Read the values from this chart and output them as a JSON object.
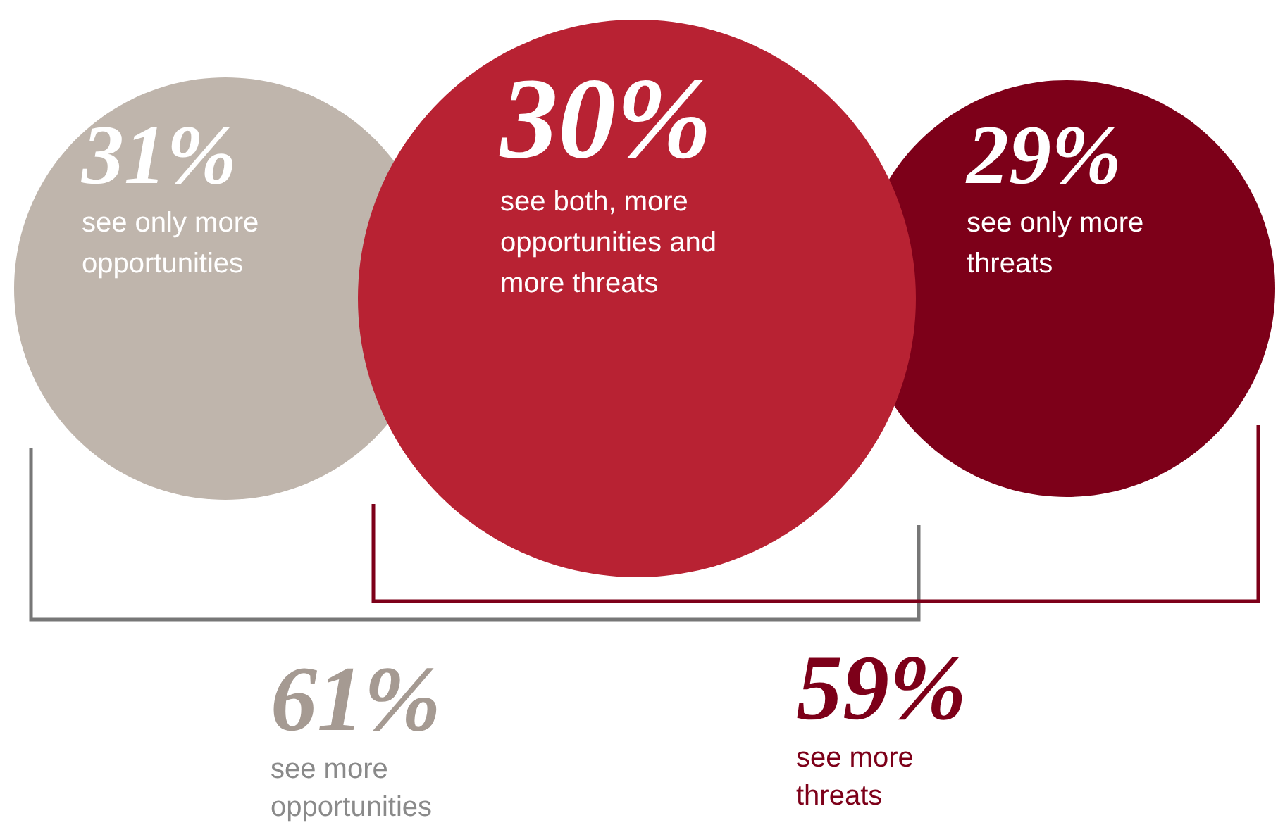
{
  "chart_data": {
    "type": "other",
    "categories": [
      "see only more opportunities",
      "see both, more opportunities and more threats",
      "see only more threats"
    ],
    "values": [
      31,
      30,
      29
    ],
    "value_labels": [
      "31%",
      "30%",
      "29%"
    ],
    "colors": [
      "#bfb5ac",
      "#b82233",
      "#7d0019"
    ],
    "annotations": [
      "61%",
      "see more opportunities",
      "59%",
      "see more threats"
    ]
  }
}
